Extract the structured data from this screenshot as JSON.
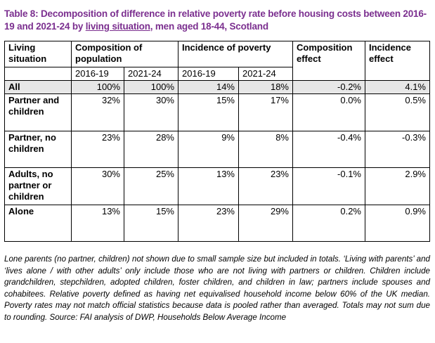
{
  "title": {
    "before": "Table 8: Decomposition of difference in relative poverty rate before housing costs between 2016-19 and 2021-24 by ",
    "underlined": "living situation",
    "after": ", men aged 18-44, Scotland"
  },
  "table": {
    "headers": {
      "living_situation": "Living situation",
      "composition": "Composition of population",
      "incidence": "Incidence of poverty",
      "composition_effect": "Composition effect",
      "incidence_effect": "Incidence effect"
    },
    "years": [
      "2016-19",
      "2021-24",
      "2016-19",
      "2021-24"
    ],
    "rows": [
      {
        "label": "All",
        "values": [
          "100%",
          "100%",
          "14%",
          "18%",
          "-0.2%",
          "4.1%"
        ]
      },
      {
        "label": "Partner and children",
        "values": [
          "32%",
          "30%",
          "15%",
          "17%",
          "0.0%",
          "0.5%"
        ]
      },
      {
        "label": "Partner, no children",
        "values": [
          "23%",
          "28%",
          "9%",
          "8%",
          "-0.4%",
          "-0.3%"
        ]
      },
      {
        "label": "Adults, no partner or children",
        "values": [
          "30%",
          "25%",
          "13%",
          "23%",
          "-0.1%",
          "2.9%"
        ]
      },
      {
        "label": "Alone",
        "values": [
          "13%",
          "15%",
          "23%",
          "29%",
          "0.2%",
          "0.9%"
        ]
      }
    ]
  },
  "note": "Lone parents (no partner, children) not shown due to small sample size but included in totals. ‘Living with parents’ and ‘lives alone / with other adults’ only include those who are not living with partners or children. Children include grandchildren, stepchildren, adopted children, foster children, and children in law; partners include spouses and cohabitees. Relative poverty defined as having net equivalised household income below 60% of the UK median. Poverty rates may not match official statistics because data is pooled rather than averaged. Totals may not sum due to rounding. Source: FAI analysis of DWP, Households Below Average Income",
  "colors": {
    "title": "#7b2f8f",
    "all_row_bg": "#e7e7e7"
  }
}
